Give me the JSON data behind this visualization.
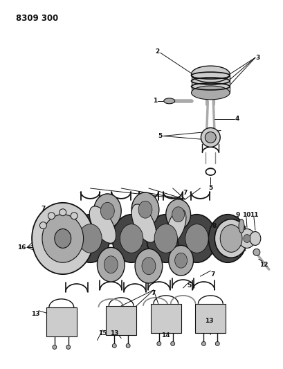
{
  "title": "8309 300",
  "bg": "#ffffff",
  "lc": "#111111",
  "gray1": "#888888",
  "gray2": "#aaaaaa",
  "gray3": "#cccccc",
  "gray4": "#444444",
  "fig_w": 4.1,
  "fig_h": 5.33,
  "dpi": 100
}
